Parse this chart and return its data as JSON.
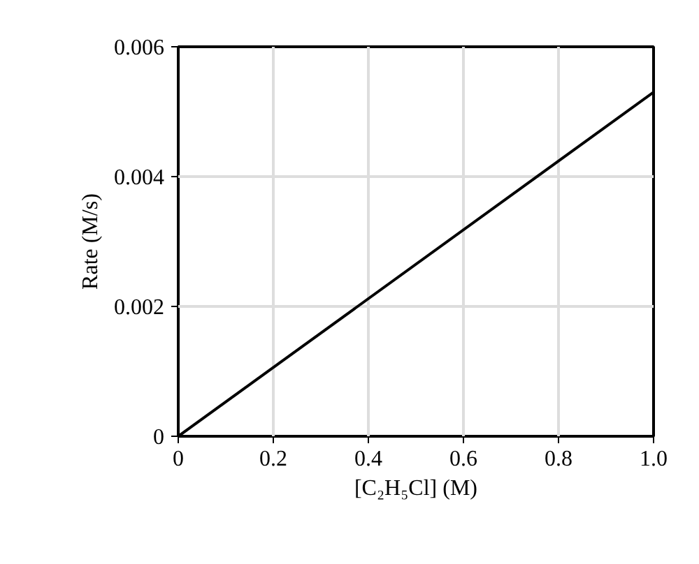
{
  "chart_data": {
    "type": "line",
    "xlabel": "[C₂H₅Cl] (M)",
    "ylabel": "Rate (M/s)",
    "x": [
      0,
      1.0
    ],
    "series": [
      {
        "color": "#000000",
        "values": [
          0,
          0.0053
        ]
      }
    ],
    "xlim": [
      0,
      1.0
    ],
    "ylim": [
      0,
      0.006
    ],
    "xticks": [
      0,
      0.2,
      0.4,
      0.6,
      0.8,
      {
        "value": 1.0,
        "label": "1.0"
      }
    ],
    "yticks": [
      0,
      0.002,
      0.004,
      0.006
    ],
    "grid": true,
    "marker": "none",
    "line_style": "solid"
  }
}
